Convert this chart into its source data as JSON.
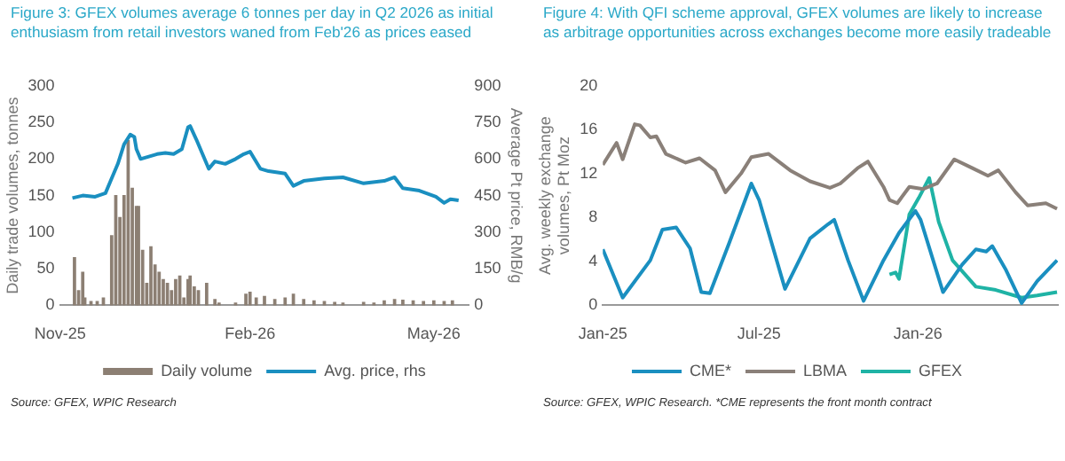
{
  "chart_data": [
    {
      "type": "bar",
      "title": "Figure 3: GFEX volumes average 6 tonnes per day in Q2 2026 as initial enthusiasm from retail investors waned from Feb'26 as prices eased",
      "ylabel": "Daily trade volumes, tonnes",
      "y2label": "Average Pt price, RMB/g",
      "annotations": [
        "Source: GFEX, WPIC Research"
      ],
      "legend": "bottom",
      "grid": false,
      "marker": "none",
      "xlim": [
        "2025-11-01",
        "2026-05-18"
      ],
      "xticks": [
        {
          "value": "2025-11-01",
          "label": "Nov-25"
        },
        {
          "value": "2026-02-01",
          "label": "Feb-26"
        },
        {
          "value": "2026-05-01",
          "label": "May-26"
        }
      ],
      "ylim": [
        0,
        300
      ],
      "yticks": [
        0,
        50,
        100,
        150,
        200,
        250,
        300
      ],
      "y2lim": [
        0,
        900
      ],
      "y2ticks": [
        0,
        150,
        300,
        450,
        600,
        750,
        900
      ],
      "series": [
        {
          "name": "Daily volume",
          "type": "bar",
          "color": "#8c7f73",
          "x": [
            "2025-11-08",
            "2025-11-10",
            "2025-11-12",
            "2025-11-13",
            "2025-11-16",
            "2025-11-19",
            "2025-11-22",
            "2025-11-26",
            "2025-11-28",
            "2025-11-30",
            "2025-12-02",
            "2025-12-04",
            "2025-12-06",
            "2025-12-08",
            "2025-12-09",
            "2025-12-11",
            "2025-12-13",
            "2025-12-15",
            "2025-12-17",
            "2025-12-19",
            "2025-12-21",
            "2025-12-23",
            "2025-12-25",
            "2025-12-27",
            "2025-12-29",
            "2025-12-31",
            "2026-01-02",
            "2026-01-03",
            "2026-01-05",
            "2026-01-07",
            "2026-01-11",
            "2026-01-15",
            "2026-01-17",
            "2026-01-25",
            "2026-01-30",
            "2026-02-01",
            "2026-02-04",
            "2026-02-08",
            "2026-02-13",
            "2026-02-18",
            "2026-02-22",
            "2026-02-27",
            "2026-03-04",
            "2026-03-09",
            "2026-03-14",
            "2026-03-18",
            "2026-03-28",
            "2026-04-02",
            "2026-04-07",
            "2026-04-12",
            "2026-04-16",
            "2026-04-21",
            "2026-04-26",
            "2026-05-01",
            "2026-05-06",
            "2026-05-10"
          ],
          "values": [
            65,
            20,
            45,
            10,
            5,
            5,
            10,
            95,
            150,
            120,
            150,
            225,
            160,
            135,
            135,
            75,
            30,
            80,
            55,
            45,
            35,
            30,
            20,
            35,
            40,
            10,
            35,
            40,
            25,
            20,
            30,
            8,
            3,
            3,
            15,
            18,
            10,
            12,
            8,
            10,
            15,
            8,
            6,
            5,
            4,
            3,
            4,
            3,
            6,
            8,
            7,
            6,
            5,
            6,
            5,
            6
          ]
        },
        {
          "name": "Avg. price, rhs",
          "type": "line",
          "axis": "y2",
          "color": "#1a8fc0",
          "x": [
            "2025-11-07",
            "2025-11-12",
            "2025-11-18",
            "2025-11-23",
            "2025-11-26",
            "2025-11-29",
            "2025-12-02",
            "2025-12-05",
            "2025-12-07",
            "2025-12-08",
            "2025-12-10",
            "2025-12-14",
            "2025-12-18",
            "2025-12-22",
            "2025-12-26",
            "2025-12-30",
            "2026-01-02",
            "2026-01-03",
            "2026-01-06",
            "2026-01-09",
            "2026-01-12",
            "2026-01-15",
            "2026-01-20",
            "2026-01-25",
            "2026-01-29",
            "2026-02-01",
            "2026-02-06",
            "2026-02-10",
            "2026-02-18",
            "2026-02-22",
            "2026-02-27",
            "2026-03-09",
            "2026-03-18",
            "2026-03-28",
            "2026-04-07",
            "2026-04-12",
            "2026-04-16",
            "2026-04-24",
            "2026-05-02",
            "2026-05-06",
            "2026-05-09",
            "2026-05-13"
          ],
          "values": [
            440,
            450,
            445,
            460,
            520,
            580,
            660,
            700,
            690,
            640,
            600,
            610,
            620,
            625,
            620,
            640,
            730,
            735,
            680,
            620,
            560,
            590,
            580,
            600,
            620,
            630,
            560,
            550,
            540,
            490,
            510,
            520,
            525,
            500,
            510,
            525,
            480,
            470,
            445,
            420,
            435,
            430
          ]
        }
      ]
    },
    {
      "type": "line",
      "title": "Figure 4: With QFI scheme approval, GFEX volumes are likely to increase as arbitrage opportunities across exchanges become more easily tradeable",
      "ylabel": "Avg. weekly exchange volumes, Pt Moz",
      "annotations": [
        "Source: GFEX, WPIC Research. *CME represents the front month contract"
      ],
      "legend": "bottom",
      "grid": false,
      "marker": "none",
      "xlim": [
        "2025-01-01",
        "2026-06-12"
      ],
      "xticks": [
        {
          "value": "2025-01-01",
          "label": "Jan-25"
        },
        {
          "value": "2025-07-01",
          "label": "Jul-25"
        },
        {
          "value": "2026-01-01",
          "label": "Jan-26"
        }
      ],
      "ylim": [
        0,
        20
      ],
      "yticks": [
        0,
        4,
        8,
        12,
        16,
        20
      ],
      "series": [
        {
          "name": "CME*",
          "color": "#1a8fc0",
          "x": [
            "2025-01-01",
            "2025-01-24",
            "2025-02-25",
            "2025-03-11",
            "2025-03-27",
            "2025-04-12",
            "2025-04-25",
            "2025-05-05",
            "2025-05-27",
            "2025-06-22",
            "2025-07-01",
            "2025-07-31",
            "2025-08-29",
            "2025-09-19",
            "2025-09-26",
            "2025-10-12",
            "2025-10-30",
            "2025-11-22",
            "2025-12-10",
            "2025-12-29",
            "2026-01-04",
            "2026-01-30",
            "2026-02-21",
            "2026-03-09",
            "2026-03-21",
            "2026-03-28",
            "2026-04-13",
            "2026-05-01",
            "2026-05-19",
            "2026-06-11"
          ],
          "values": [
            5.1,
            0.7,
            4.1,
            6.9,
            7.1,
            5.2,
            1.2,
            1.1,
            5.6,
            11.1,
            9.6,
            1.5,
            6.1,
            7.4,
            7.8,
            4.1,
            0.4,
            4.1,
            6.6,
            8.6,
            7.8,
            1.2,
            3.7,
            5.1,
            4.9,
            5.4,
            3.2,
            0.2,
            2.2,
            4.1
          ]
        },
        {
          "name": "LBMA",
          "color": "#8a8079",
          "x": [
            "2025-01-01",
            "2025-01-17",
            "2025-01-24",
            "2025-02-07",
            "2025-02-13",
            "2025-02-25",
            "2025-03-04",
            "2025-03-15",
            "2025-04-07",
            "2025-04-23",
            "2025-05-11",
            "2025-05-23",
            "2025-06-10",
            "2025-06-22",
            "2025-07-12",
            "2025-08-06",
            "2025-08-29",
            "2025-09-21",
            "2025-10-03",
            "2025-10-23",
            "2025-11-04",
            "2025-11-22",
            "2025-11-29",
            "2025-12-08",
            "2025-12-22",
            "2026-01-07",
            "2026-01-23",
            "2026-02-12",
            "2026-03-05",
            "2026-03-23",
            "2026-04-04",
            "2026-04-24",
            "2026-05-08",
            "2026-05-29",
            "2026-06-11"
          ],
          "values": [
            12.8,
            14.8,
            13.3,
            16.5,
            16.4,
            15.3,
            15.4,
            13.8,
            13.0,
            13.4,
            12.3,
            10.3,
            12.0,
            13.5,
            13.8,
            12.3,
            11.3,
            10.7,
            11.1,
            12.5,
            13.1,
            10.8,
            9.6,
            9.3,
            10.8,
            10.6,
            11.1,
            13.3,
            12.5,
            11.8,
            12.3,
            10.3,
            9.1,
            9.3,
            8.8
          ]
        },
        {
          "name": "GFEX",
          "color": "#1fb3a5",
          "x": [
            "2025-11-29",
            "2025-12-06",
            "2025-12-10",
            "2025-12-22",
            "2026-01-02",
            "2026-01-14",
            "2026-01-25",
            "2026-02-10",
            "2026-03-09",
            "2026-04-01",
            "2026-05-01",
            "2026-05-19",
            "2026-06-11"
          ],
          "values": [
            2.8,
            3.0,
            2.4,
            8.3,
            9.8,
            11.6,
            7.6,
            4.1,
            1.7,
            1.4,
            0.7,
            0.9,
            1.2
          ]
        }
      ]
    }
  ]
}
